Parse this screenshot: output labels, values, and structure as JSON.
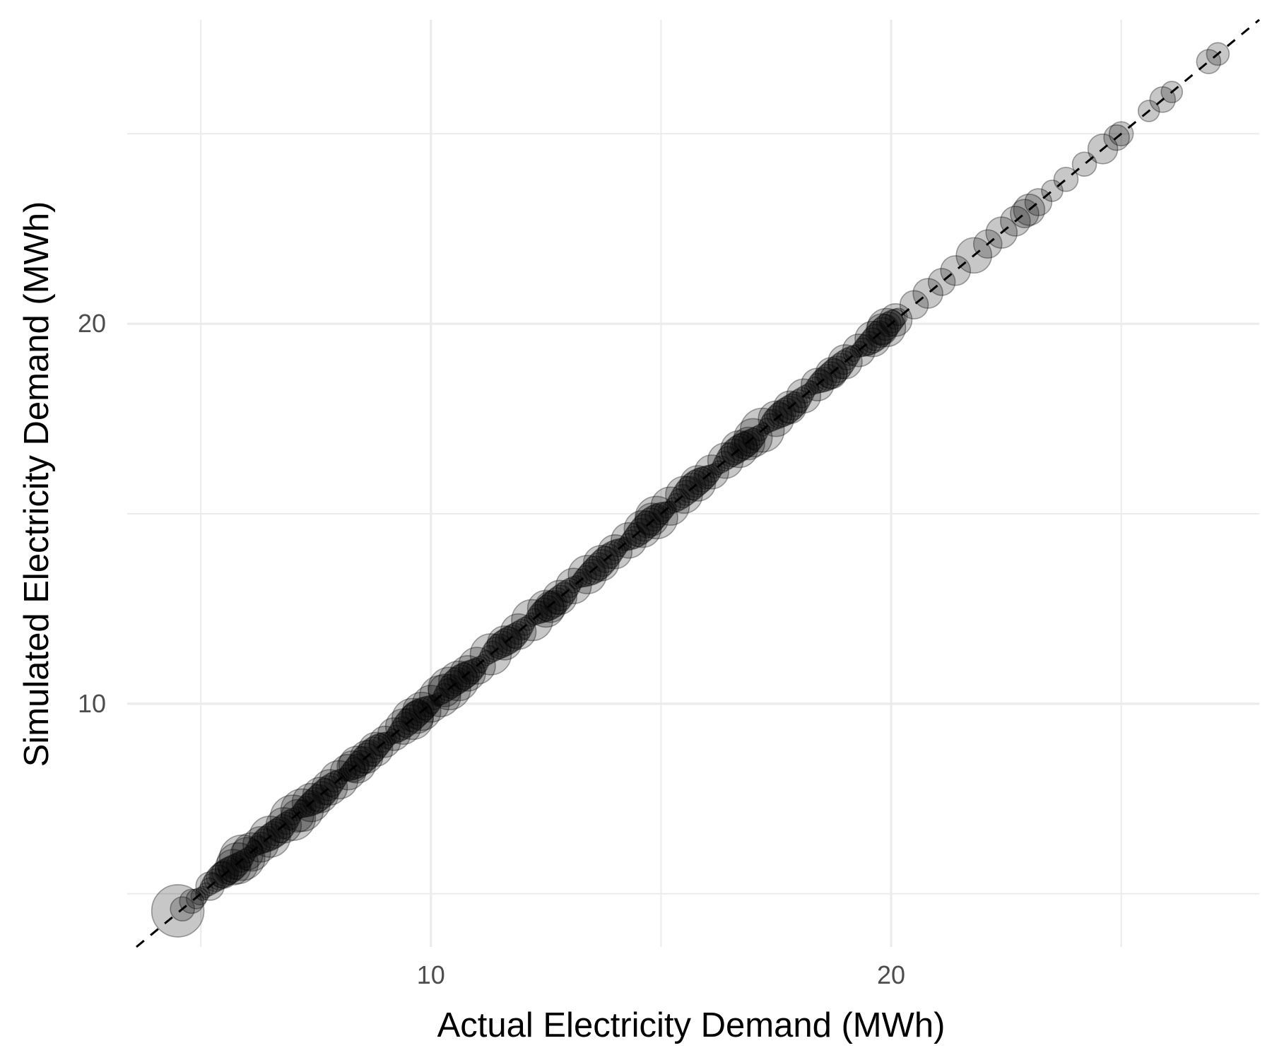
{
  "chart_data": {
    "type": "scatter",
    "title": "",
    "xlabel": "Actual Electricity Demand (MWh)",
    "ylabel": "Simulated Electricity Demand (MWh)",
    "xlim": [
      3.4,
      28.0
    ],
    "ylim": [
      3.6,
      28.0
    ],
    "x_major_ticks": [
      10,
      20
    ],
    "y_major_ticks": [
      10,
      20
    ],
    "x_minor_ticks": [
      5,
      15,
      25
    ],
    "y_minor_ticks": [
      5,
      15,
      25
    ],
    "grid": true,
    "reference_line": {
      "slope": 1,
      "intercept": 0,
      "style": "dashed",
      "color": "#000000"
    },
    "point_color": "#000000",
    "series": [
      {
        "points": [
          [
            4.5,
            4.55,
            3.0
          ],
          [
            4.6,
            4.6,
            1.0
          ],
          [
            4.8,
            4.8,
            1.0
          ],
          [
            5.2,
            5.2,
            1.3
          ],
          [
            5.5,
            5.5,
            1.2
          ],
          [
            5.7,
            5.7,
            1.8
          ],
          [
            5.8,
            5.8,
            2.2
          ],
          [
            5.9,
            5.95,
            2.5
          ],
          [
            6.1,
            6.1,
            2.0
          ],
          [
            6.3,
            6.3,
            1.8
          ],
          [
            6.5,
            6.5,
            2.2
          ],
          [
            6.8,
            6.8,
            1.8
          ],
          [
            7.0,
            7.0,
            2.5
          ],
          [
            7.2,
            7.2,
            2.3
          ],
          [
            7.4,
            7.4,
            2.0
          ],
          [
            7.6,
            7.6,
            1.8
          ],
          [
            7.8,
            7.8,
            1.8
          ],
          [
            8.0,
            8.0,
            2.0
          ],
          [
            8.2,
            8.2,
            1.8
          ],
          [
            8.4,
            8.4,
            1.9
          ],
          [
            8.6,
            8.6,
            1.6
          ],
          [
            8.8,
            8.8,
            1.7
          ],
          [
            9.0,
            9.0,
            1.5
          ],
          [
            9.2,
            9.2,
            1.6
          ],
          [
            9.4,
            9.4,
            1.8
          ],
          [
            9.6,
            9.6,
            2.2
          ],
          [
            9.8,
            9.8,
            2.0
          ],
          [
            10.0,
            10.0,
            1.9
          ],
          [
            10.2,
            10.2,
            2.2
          ],
          [
            10.4,
            10.4,
            2.3
          ],
          [
            10.6,
            10.6,
            2.1
          ],
          [
            10.8,
            10.8,
            1.8
          ],
          [
            11.0,
            11.0,
            1.9
          ],
          [
            11.3,
            11.3,
            2.2
          ],
          [
            11.6,
            11.6,
            1.7
          ],
          [
            11.9,
            11.9,
            1.8
          ],
          [
            12.2,
            12.2,
            2.2
          ],
          [
            12.5,
            12.5,
            1.9
          ],
          [
            12.8,
            12.8,
            1.7
          ],
          [
            13.1,
            13.1,
            1.8
          ],
          [
            13.4,
            13.4,
            2.0
          ],
          [
            13.7,
            13.7,
            1.8
          ],
          [
            14.0,
            14.0,
            1.7
          ],
          [
            14.3,
            14.3,
            1.8
          ],
          [
            14.6,
            14.6,
            1.9
          ],
          [
            14.9,
            14.9,
            2.3
          ],
          [
            15.2,
            15.2,
            2.0
          ],
          [
            15.5,
            15.5,
            1.9
          ],
          [
            15.8,
            15.8,
            1.8
          ],
          [
            16.1,
            16.1,
            1.7
          ],
          [
            16.4,
            16.4,
            1.8
          ],
          [
            16.7,
            16.7,
            1.9
          ],
          [
            17.0,
            17.0,
            2.0
          ],
          [
            17.2,
            17.2,
            2.4
          ],
          [
            17.5,
            17.5,
            1.8
          ],
          [
            17.8,
            17.8,
            1.6
          ],
          [
            18.1,
            18.1,
            1.7
          ],
          [
            18.4,
            18.4,
            1.6
          ],
          [
            18.7,
            18.7,
            1.5
          ],
          [
            19.0,
            19.0,
            1.7
          ],
          [
            19.3,
            19.3,
            1.6
          ],
          [
            19.6,
            19.6,
            1.8
          ],
          [
            19.9,
            19.9,
            2.0
          ],
          [
            20.1,
            20.1,
            1.6
          ],
          [
            20.5,
            20.5,
            1.3
          ],
          [
            20.8,
            20.8,
            1.4
          ],
          [
            21.1,
            21.1,
            1.2
          ],
          [
            21.4,
            21.4,
            1.4
          ],
          [
            21.8,
            21.8,
            1.8
          ],
          [
            22.1,
            22.1,
            1.3
          ],
          [
            22.4,
            22.4,
            1.5
          ],
          [
            22.7,
            22.7,
            1.4
          ],
          [
            22.9,
            22.9,
            1.3
          ],
          [
            23.0,
            23.0,
            1.5
          ],
          [
            23.2,
            23.2,
            1.2
          ],
          [
            23.5,
            23.5,
            0.8
          ],
          [
            23.8,
            23.8,
            1.0
          ],
          [
            24.2,
            24.2,
            1.0
          ],
          [
            24.6,
            24.6,
            1.4
          ],
          [
            24.9,
            24.9,
            1.1
          ],
          [
            25.0,
            25.0,
            1.0
          ],
          [
            25.6,
            25.6,
            0.8
          ],
          [
            25.9,
            25.9,
            1.1
          ],
          [
            26.1,
            26.1,
            0.8
          ],
          [
            26.9,
            26.9,
            1.0
          ],
          [
            27.1,
            27.1,
            0.9
          ],
          [
            7.1,
            7.05,
            1.6
          ],
          [
            10.3,
            10.35,
            1.6
          ],
          [
            14.8,
            14.85,
            1.6
          ],
          [
            16.9,
            16.85,
            1.6
          ],
          [
            19.8,
            19.85,
            1.5
          ],
          [
            12.6,
            12.55,
            1.5
          ],
          [
            9.7,
            9.65,
            1.6
          ],
          [
            8.3,
            8.35,
            1.5
          ],
          [
            6.0,
            6.05,
            1.6
          ]
        ]
      }
    ]
  }
}
